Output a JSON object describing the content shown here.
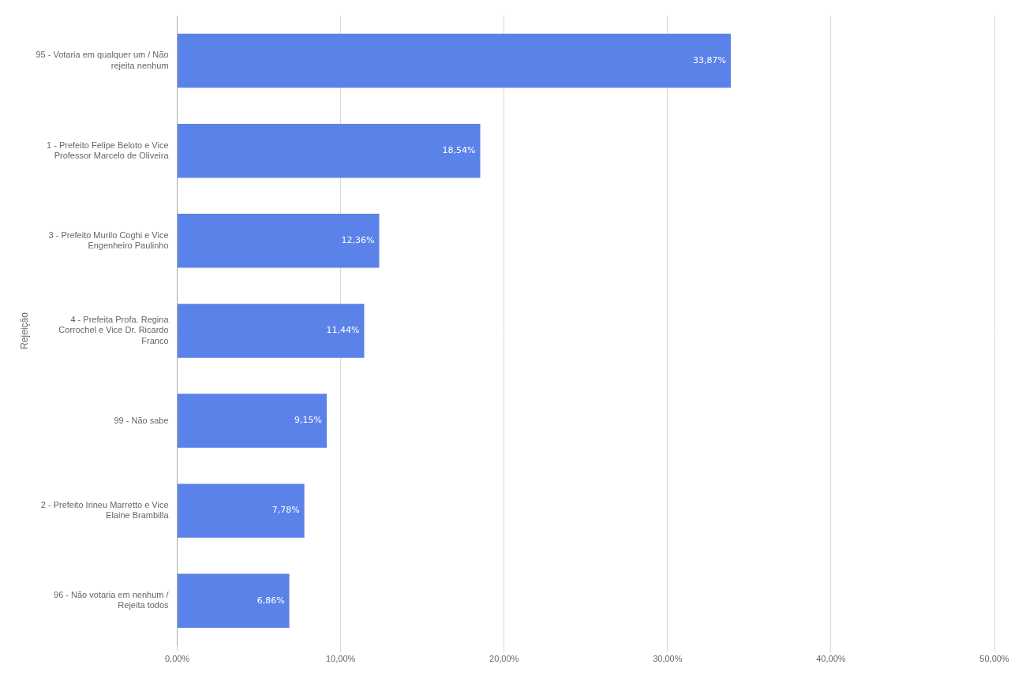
{
  "chart_data": {
    "type": "bar",
    "orientation": "horizontal",
    "categories": [
      "96 - Não votaria em nenhum /\nRejeita todos",
      "2 - Prefeito Irineu Marretto e Vice\nElaine Brambilla",
      "99 - Não sabe",
      "4 - Prefeita Profa. Regina\nCorrochel e Vice Dr. Ricardo\nFranco",
      "3 - Prefeito Murilo Coghi e Vice\nEngenheiro Paulinho",
      "1 - Prefeito Felipe Beloto e Vice\nProfessor Marcelo de Oliveira",
      "95 - Votaria em qualquer um / Não\nrejeita nenhum"
    ],
    "values": [
      6.86,
      7.78,
      9.15,
      11.44,
      12.36,
      18.54,
      33.87
    ],
    "value_labels": [
      "6,86%",
      "7,78%",
      "9,15%",
      "11,44%",
      "12,36%",
      "18,54%",
      "33,87%"
    ],
    "data_labels": true,
    "color": "#5B82E8",
    "ylabel": "Rejeição",
    "xlim": [
      0,
      50
    ],
    "xticks": [
      {
        "value": 0,
        "label": "0,00%"
      },
      {
        "value": 10,
        "label": "10,00%"
      },
      {
        "value": 20,
        "label": "20,00%"
      },
      {
        "value": 30,
        "label": "30,00%"
      },
      {
        "value": 40,
        "label": "40,00%"
      },
      {
        "value": 50,
        "label": "50,00%"
      }
    ],
    "grid": true,
    "legend": false
  }
}
